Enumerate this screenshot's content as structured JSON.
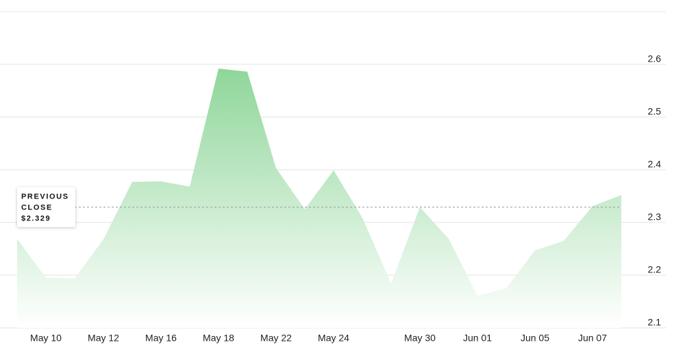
{
  "chart_data": {
    "type": "area",
    "categories": [
      null,
      "May 10",
      null,
      "May 12",
      null,
      "May 16",
      null,
      "May 18",
      null,
      "May 22",
      null,
      "May 24",
      null,
      null,
      "May 30",
      null,
      "Jun 01",
      null,
      "Jun 05",
      null,
      "Jun 07",
      null
    ],
    "values": [
      2.269,
      2.195,
      2.194,
      2.268,
      2.377,
      2.378,
      2.368,
      2.592,
      2.586,
      2.403,
      2.325,
      2.399,
      2.309,
      2.184,
      2.329,
      2.269,
      2.161,
      2.175,
      2.247,
      2.265,
      2.331,
      2.352
    ],
    "color": "#8fd69a",
    "ylim": [
      2.1,
      2.7
    ],
    "yticks": [
      2.1,
      2.2,
      2.3,
      2.4,
      2.5,
      2.6
    ],
    "grid": true,
    "annotation": {
      "label": "PREVIOUS CLOSE",
      "value": 2.329,
      "value_label": "$2.329"
    }
  }
}
